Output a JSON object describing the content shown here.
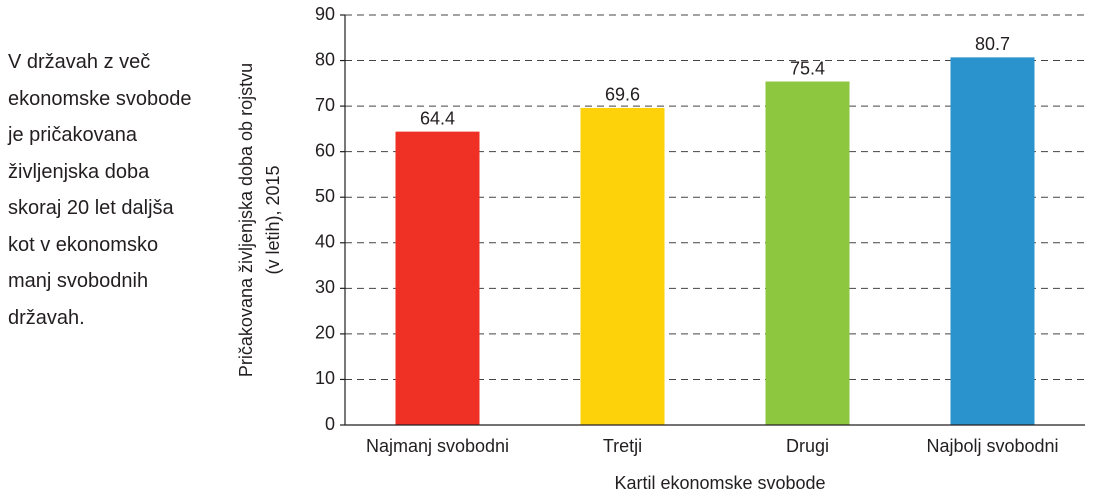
{
  "chart_data": {
    "type": "bar",
    "annotation": "V državah z več ekonomske svobode je pričakovana življenjska doba skoraj 20 let daljša kot v ekonomsko manj svobodnih državah.",
    "ylabel": [
      "Pričakovana življenjska doba ob rojstvu",
      "(v letih), 2015"
    ],
    "xlabel": "Kartil ekonomske svobode",
    "categories": [
      "Najmanj svobodni",
      "Tretji",
      "Drugi",
      "Najbolj svobodni"
    ],
    "values": [
      64.4,
      69.6,
      75.4,
      80.7
    ],
    "colors": [
      "#ee3124",
      "#fdd20a",
      "#8dc63f",
      "#2a93cd"
    ],
    "ylim": [
      0,
      90
    ],
    "yticks": [
      0,
      10,
      20,
      30,
      40,
      50,
      60,
      70,
      80,
      90
    ],
    "grid": true
  }
}
